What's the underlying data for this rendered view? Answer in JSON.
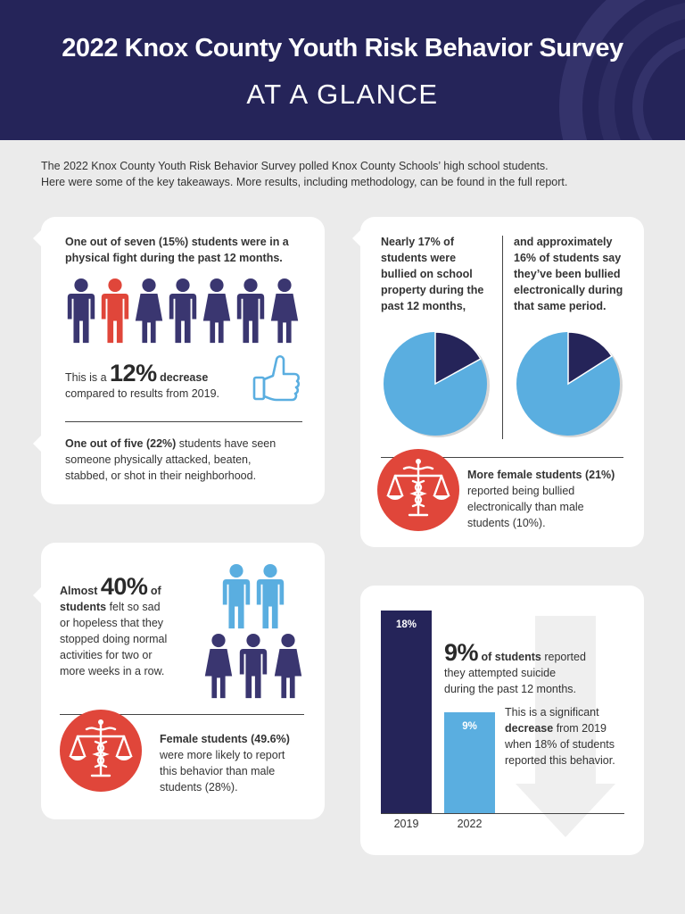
{
  "header": {
    "title": "2022 Knox County Youth Risk Behavior Survey",
    "subtitle": "AT A GLANCE"
  },
  "intro": {
    "line1": "The 2022 Knox County Youth Risk Behavior Survey polled Knox County Schools’ high school students.",
    "line2": "Here were some of the key takeaways. More results, including methodology, can be found in the full report."
  },
  "fight": {
    "bold": "One out of seven (15%) students were in a physical fight during the past 12 months.",
    "decrease_pre": "This is a",
    "decrease_big": "12%",
    "decrease_post": "decrease",
    "decrease_line2": "compared to results from 2019.",
    "witness_bold": "One out of five (22%)",
    "witness_rest1": " students have seen",
    "witness_line2": "someone physically attacked, beaten,",
    "witness_line3": "stabbed, or shot in their neighborhood.",
    "people_total": 7,
    "people_highlighted": 1
  },
  "bullied": {
    "left": [
      "Nearly 17% of",
      "students were",
      "bullied on school",
      "property during the",
      "past 12 months,"
    ],
    "right": [
      "and approximately",
      "16% of students say",
      "they’ve been bullied",
      "electronically during",
      "that same period."
    ],
    "pie_left_percent": 17,
    "pie_right_percent": 16,
    "female_bold": "More female students (21%)",
    "female_lines": [
      "reported being bullied",
      "electronically than male",
      "students (10%)."
    ]
  },
  "sad": {
    "almost": "Almost",
    "big": "40%",
    "of": "of",
    "students": "students",
    "lines": [
      " felt so sad",
      "or hopeless that they",
      "stopped doing normal",
      "activities for two or",
      "more weeks in a row."
    ],
    "female_bold": "Female students (49.6%)",
    "female_lines": [
      "were more likely to report",
      "this behavior than male",
      "students (28%)."
    ]
  },
  "suicide": {
    "big": "9%",
    "of_students": " of students",
    "reported": " reported",
    "line2": "they attempted suicide",
    "line3": "during the past 12 months.",
    "sig1": "This is a significant",
    "sig2_bold": "decrease",
    "sig2_rest": " from 2019",
    "sig3": "when 18% of students",
    "sig4": "reported this behavior."
  },
  "chart_data": {
    "type": "bar",
    "categories": [
      "2019",
      "2022"
    ],
    "values": [
      18,
      9
    ],
    "value_labels": [
      "18%",
      "9%"
    ],
    "colors": [
      "#252459",
      "#5aaee0"
    ]
  },
  "colors": {
    "navy": "#252459",
    "person_purple": "#3a3670",
    "red": "#e0463a",
    "light_blue": "#5aaee0"
  },
  "icons": [
    "thumbs-up-icon",
    "scales-caduceus-icon",
    "person-icon",
    "down-arrow-icon"
  ]
}
